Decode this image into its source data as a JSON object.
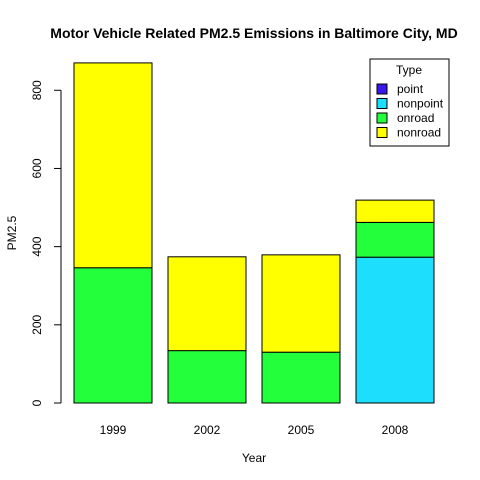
{
  "chart_data": {
    "type": "bar",
    "stacked": true,
    "title": "Motor Vehicle Related PM2.5 Emissions in Baltimore City, MD",
    "xlabel": "Year",
    "ylabel": "PM2.5",
    "ylim": [
      0,
      880
    ],
    "yticks": [
      0,
      200,
      400,
      600,
      800
    ],
    "categories": [
      "1999",
      "2002",
      "2005",
      "2008"
    ],
    "series": [
      {
        "name": "point",
        "color": "#3c17ea",
        "values": [
          0,
          0,
          0,
          0
        ]
      },
      {
        "name": "nonpoint",
        "color": "#1edefd",
        "values": [
          0,
          0,
          0,
          373
        ]
      },
      {
        "name": "onroad",
        "color": "#23ff3b",
        "values": [
          346,
          134,
          130,
          89
        ]
      },
      {
        "name": "nonroad",
        "color": "#ffff00",
        "values": [
          524,
          240,
          249,
          57
        ]
      }
    ],
    "legend": {
      "title": "Type",
      "position": "top-right"
    },
    "grid": false
  }
}
